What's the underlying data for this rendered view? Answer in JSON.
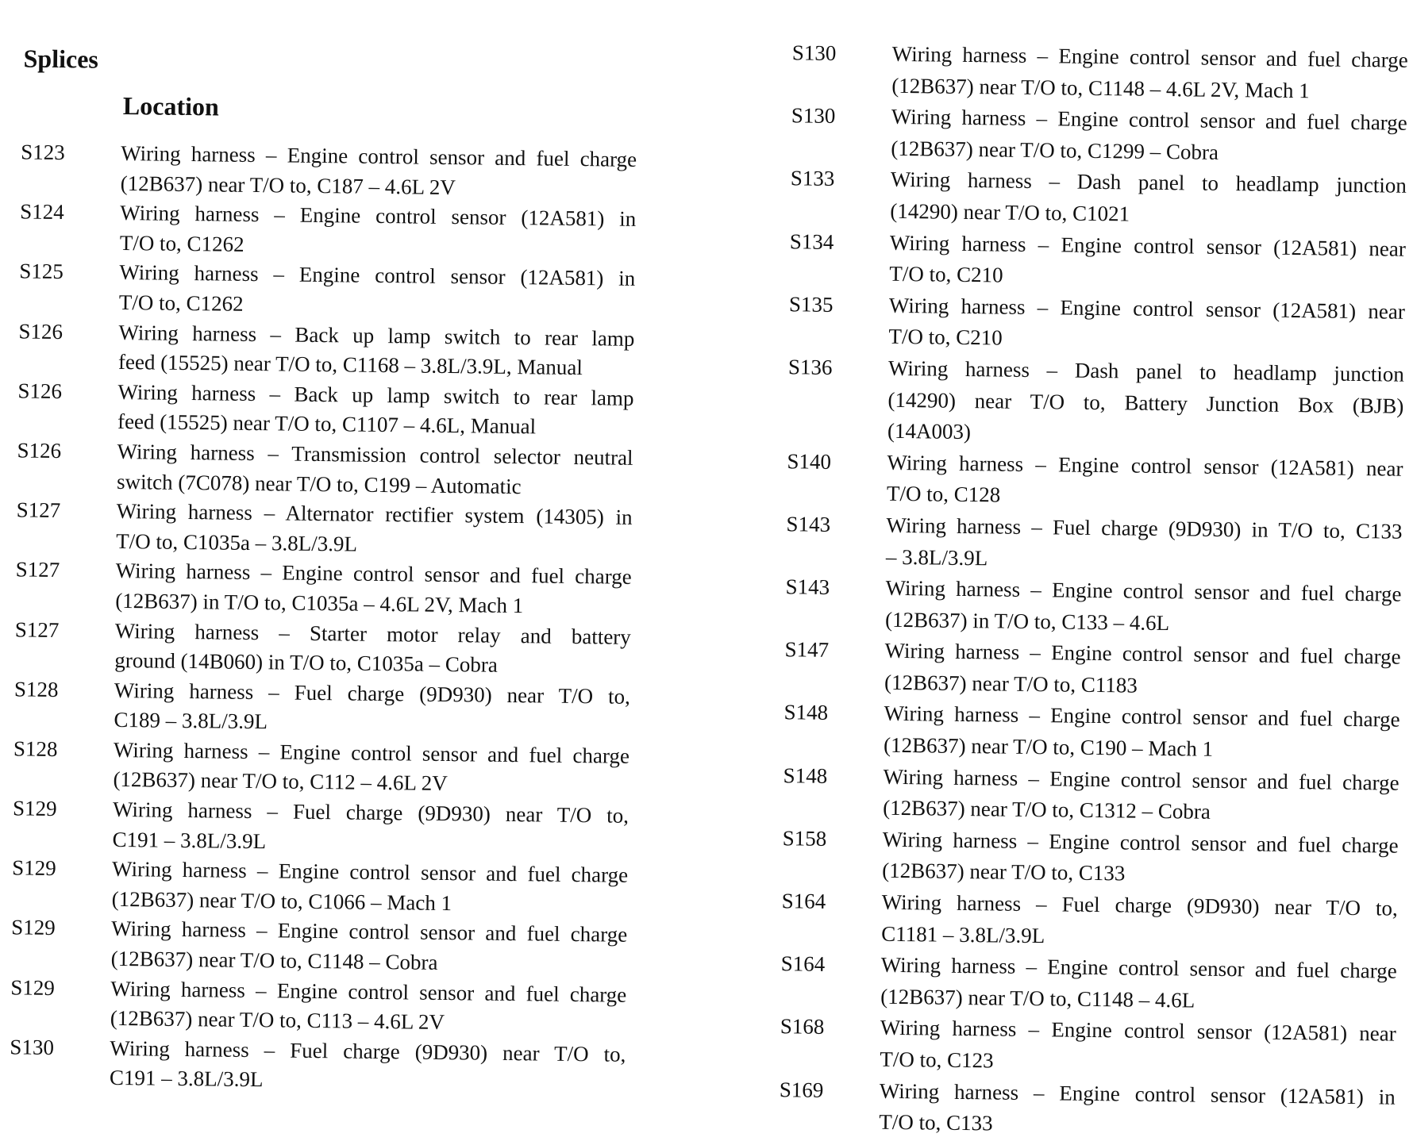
{
  "heading": "Splices",
  "subheading": "Location",
  "left": [
    {
      "code": "S123",
      "lines": [
        "Wiring harness – Engine control sensor and fuel charge",
        "(12B637) near T/O to, C187 – 4.6L 2V"
      ]
    },
    {
      "code": "S124",
      "lines": [
        "Wiring harness – Engine control sensor (12A581) in",
        "T/O to, C1262"
      ]
    },
    {
      "code": "S125",
      "lines": [
        "Wiring harness – Engine control sensor (12A581) in",
        "T/O to, C1262"
      ]
    },
    {
      "code": "S126",
      "lines": [
        "Wiring harness – Back up lamp switch to rear lamp",
        "feed (15525) near T/O to, C1168 – 3.8L/3.9L, Manual"
      ]
    },
    {
      "code": "S126",
      "lines": [
        "Wiring harness – Back up lamp switch to rear lamp",
        "feed (15525) near T/O to, C1107 – 4.6L, Manual"
      ]
    },
    {
      "code": "S126",
      "lines": [
        "Wiring harness – Transmission control selector neutral",
        "switch (7C078) near T/O to, C199 – Automatic"
      ]
    },
    {
      "code": "S127",
      "lines": [
        "Wiring harness – Alternator rectifier system (14305) in",
        "T/O to, C1035a – 3.8L/3.9L"
      ]
    },
    {
      "code": "S127",
      "lines": [
        "Wiring harness – Engine control sensor and fuel charge",
        "(12B637) in T/O to, C1035a – 4.6L 2V, Mach 1"
      ]
    },
    {
      "code": "S127",
      "lines": [
        "Wiring harness – Starter motor relay and battery",
        "ground (14B060) in T/O to, C1035a – Cobra"
      ]
    },
    {
      "code": "S128",
      "lines": [
        "Wiring harness – Fuel charge (9D930) near T/O to,",
        "C189 – 3.8L/3.9L"
      ]
    },
    {
      "code": "S128",
      "lines": [
        "Wiring harness – Engine control sensor and fuel charge",
        "(12B637) near T/O to, C112 – 4.6L 2V"
      ]
    },
    {
      "code": "S129",
      "lines": [
        "Wiring harness – Fuel charge (9D930) near T/O to,",
        "C191 – 3.8L/3.9L"
      ]
    },
    {
      "code": "S129",
      "lines": [
        "Wiring harness – Engine control sensor and fuel charge",
        "(12B637) near T/O to, C1066 – Mach 1"
      ]
    },
    {
      "code": "S129",
      "lines": [
        "Wiring harness – Engine control sensor and fuel charge",
        "(12B637) near T/O to, C1148 – Cobra"
      ]
    },
    {
      "code": "S129",
      "lines": [
        "Wiring harness – Engine control sensor and fuel charge",
        "(12B637) near T/O to, C113 – 4.6L 2V"
      ]
    },
    {
      "code": "S130",
      "lines": [
        "Wiring harness – Fuel charge (9D930) near T/O to,",
        "C191 – 3.8L/3.9L"
      ]
    }
  ],
  "right": [
    {
      "code": "S130",
      "lines": [
        "Wiring harness – Engine control sensor and fuel charge",
        "(12B637) near T/O to, C1148 – 4.6L 2V, Mach 1"
      ]
    },
    {
      "code": "S130",
      "lines": [
        "Wiring harness – Engine control sensor and fuel charge",
        "(12B637) near T/O to, C1299 – Cobra"
      ]
    },
    {
      "code": "S133",
      "lines": [
        "Wiring harness – Dash panel to headlamp junction",
        "(14290) near T/O to, C1021"
      ]
    },
    {
      "code": "S134",
      "lines": [
        "Wiring harness – Engine control sensor (12A581) near",
        "T/O to, C210"
      ]
    },
    {
      "code": "S135",
      "lines": [
        "Wiring harness – Engine control sensor (12A581) near",
        "T/O to, C210"
      ]
    },
    {
      "code": "S136",
      "lines": [
        "Wiring harness – Dash panel to headlamp junction",
        "(14290) near T/O to, Battery Junction Box (BJB)",
        "(14A003)"
      ]
    },
    {
      "code": "S140",
      "lines": [
        "Wiring harness – Engine control sensor (12A581) near",
        "T/O to, C128"
      ]
    },
    {
      "code": "S143",
      "lines": [
        "Wiring harness – Fuel charge (9D930) in T/O to, C133",
        "– 3.8L/3.9L"
      ]
    },
    {
      "code": "S143",
      "lines": [
        "Wiring harness – Engine control sensor and fuel charge",
        "(12B637) in T/O to, C133 – 4.6L"
      ]
    },
    {
      "code": "S147",
      "lines": [
        "Wiring harness – Engine control sensor and fuel charge",
        "(12B637) near T/O to, C1183"
      ]
    },
    {
      "code": "S148",
      "lines": [
        "Wiring harness – Engine control sensor and fuel charge",
        "(12B637) near T/O to, C190 – Mach 1"
      ]
    },
    {
      "code": "S148",
      "lines": [
        "Wiring harness – Engine control sensor and fuel charge",
        "(12B637) near T/O to, C1312 – Cobra"
      ]
    },
    {
      "code": "S158",
      "lines": [
        "Wiring harness – Engine control sensor and fuel charge",
        "(12B637) near T/O to, C133"
      ]
    },
    {
      "code": "S164",
      "lines": [
        "Wiring harness – Fuel charge (9D930) near T/O to,",
        "C1181 – 3.8L/3.9L"
      ]
    },
    {
      "code": "S164",
      "lines": [
        "Wiring harness – Engine control sensor and fuel charge",
        "(12B637) near T/O to, C1148 – 4.6L"
      ]
    },
    {
      "code": "S168",
      "lines": [
        "Wiring harness – Engine control sensor (12A581) near",
        "T/O to, C123"
      ]
    },
    {
      "code": "S169",
      "lines": [
        "Wiring harness – Engine control sensor (12A581) in",
        "T/O to, C133"
      ]
    }
  ]
}
